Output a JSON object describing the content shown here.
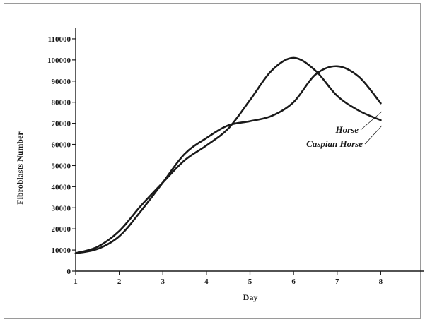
{
  "chart_data": {
    "type": "line",
    "xlabel": "Day",
    "ylabel": "Fibroblasts Number",
    "xlim": [
      1,
      9
    ],
    "ylim": [
      0,
      115000
    ],
    "x_ticks": [
      1,
      2,
      3,
      4,
      5,
      6,
      7,
      8
    ],
    "y_ticks": [
      0,
      10000,
      20000,
      30000,
      40000,
      50000,
      60000,
      70000,
      80000,
      90000,
      100000,
      110000
    ],
    "series": [
      {
        "name": "Horse",
        "color": "#1a1a1a",
        "points": [
          {
            "x": 1,
            "y": 8500
          },
          {
            "x": 1.5,
            "y": 11500
          },
          {
            "x": 2,
            "y": 19000
          },
          {
            "x": 2.5,
            "y": 31000
          },
          {
            "x": 3,
            "y": 42000
          },
          {
            "x": 3.5,
            "y": 52500
          },
          {
            "x": 4,
            "y": 59500
          },
          {
            "x": 4.5,
            "y": 67500
          },
          {
            "x": 5,
            "y": 81000
          },
          {
            "x": 5.5,
            "y": 95000
          },
          {
            "x": 6,
            "y": 101000
          },
          {
            "x": 6.5,
            "y": 95000
          },
          {
            "x": 7,
            "y": 83000
          },
          {
            "x": 7.5,
            "y": 76000
          },
          {
            "x": 8,
            "y": 71500
          }
        ]
      },
      {
        "name": "Caspian Horse",
        "color": "#1a1a1a",
        "points": [
          {
            "x": 1,
            "y": 8500
          },
          {
            "x": 1.5,
            "y": 10500
          },
          {
            "x": 2,
            "y": 16500
          },
          {
            "x": 2.5,
            "y": 28500
          },
          {
            "x": 3,
            "y": 42000
          },
          {
            "x": 3.5,
            "y": 55500
          },
          {
            "x": 4,
            "y": 63000
          },
          {
            "x": 4.5,
            "y": 69000
          },
          {
            "x": 5,
            "y": 71000
          },
          {
            "x": 5.5,
            "y": 73500
          },
          {
            "x": 6,
            "y": 80000
          },
          {
            "x": 6.5,
            "y": 93000
          },
          {
            "x": 7,
            "y": 97000
          },
          {
            "x": 7.5,
            "y": 92000
          },
          {
            "x": 8,
            "y": 79500
          }
        ]
      }
    ],
    "annotations": [
      "Horse",
      "Caspian Horse"
    ]
  }
}
